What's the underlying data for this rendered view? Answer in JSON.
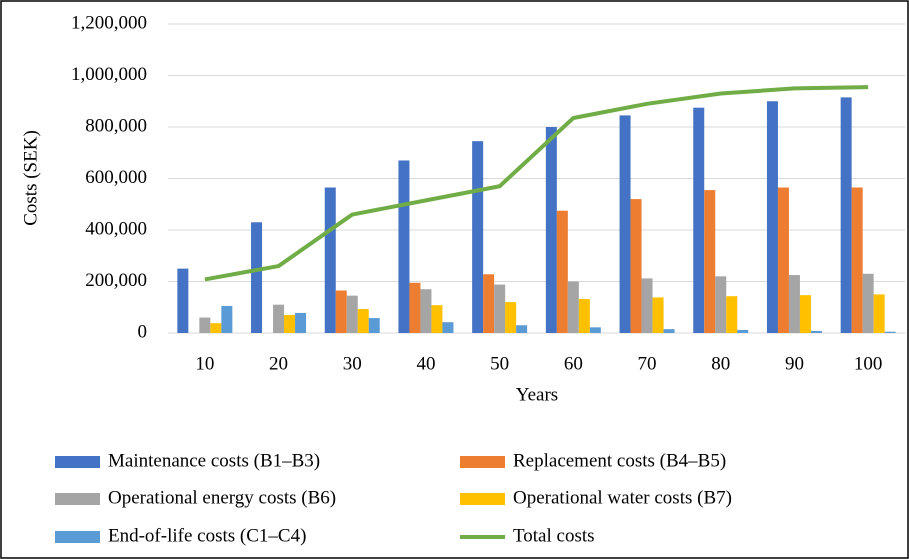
{
  "chart_data": {
    "type": "bar",
    "y_label": "Costs (SEK)",
    "x_label": "Years",
    "categories": [
      "10",
      "20",
      "30",
      "40",
      "50",
      "60",
      "70",
      "80",
      "90",
      "100"
    ],
    "series": [
      {
        "name": "Maintenance costs (B1–B3)",
        "color": "#4472c4",
        "values": [
          250000,
          430000,
          565000,
          670000,
          745000,
          800000,
          845000,
          875000,
          900000,
          915000
        ]
      },
      {
        "name": "Replacement costs (B4–B5)",
        "color": "#ed7d31",
        "values": [
          0,
          0,
          165000,
          195000,
          228000,
          475000,
          520000,
          555000,
          565000,
          565000
        ]
      },
      {
        "name": "Operational energy costs (B6)",
        "color": "#a5a5a5",
        "values": [
          60000,
          110000,
          145000,
          170000,
          188000,
          200000,
          212000,
          220000,
          225000,
          230000
        ]
      },
      {
        "name": "Operational water costs (B7)",
        "color": "#ffc000",
        "values": [
          38000,
          70000,
          93000,
          108000,
          120000,
          132000,
          138000,
          143000,
          147000,
          150000
        ]
      },
      {
        "name": "End-of-life costs (C1–C4)",
        "color": "#5b9bd5",
        "values": [
          105000,
          78000,
          58000,
          42000,
          30000,
          22000,
          15000,
          12000,
          8000,
          5000
        ]
      },
      {
        "name": "Total costs",
        "color": "#70ad47",
        "type": "line",
        "values": [
          208000,
          260000,
          460000,
          515000,
          570000,
          835000,
          890000,
          930000,
          950000,
          955000
        ]
      }
    ],
    "ylim": [
      0,
      1200000
    ],
    "yticks": [
      0,
      {
        "value": 200000,
        "label": "200,000"
      },
      {
        "value": 400000,
        "label": "400,000"
      },
      {
        "value": 600000,
        "label": "600,000"
      },
      {
        "value": 800000,
        "label": "800,000"
      },
      {
        "value": 1000000,
        "label": "1,000,000"
      },
      {
        "value": 1200000,
        "label": "1,200,000"
      }
    ],
    "grid": true,
    "legend": "bottom"
  }
}
